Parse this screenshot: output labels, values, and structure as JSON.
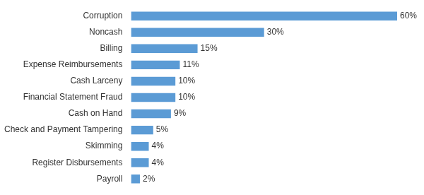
{
  "chart_data": {
    "type": "bar",
    "orientation": "horizontal",
    "categories": [
      "Corruption",
      "Noncash",
      "Billing",
      "Expense Reimbursements",
      "Cash Larceny",
      "Financial Statement Fraud",
      "Cash on Hand",
      "Check and Payment Tampering",
      "Skimming",
      "Register Disbursements",
      "Payroll"
    ],
    "values": [
      60,
      30,
      15,
      11,
      10,
      10,
      9,
      5,
      4,
      4,
      2
    ],
    "value_labels": [
      "60%",
      "30%",
      "15%",
      "11%",
      "10%",
      "10%",
      "9%",
      "5%",
      "4%",
      "4%",
      "2%"
    ],
    "color": "#5b9bd5",
    "xlim": [
      0,
      60
    ],
    "grid": false,
    "data_labels": true,
    "tick_labels": "y"
  }
}
